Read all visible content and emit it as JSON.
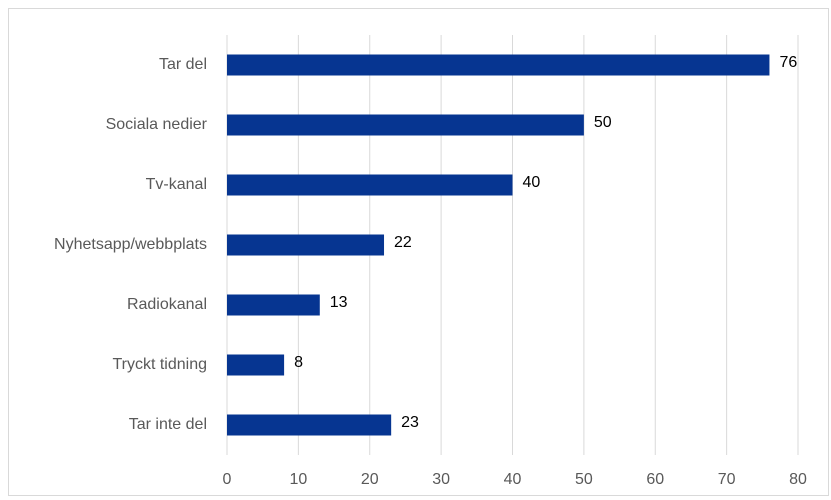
{
  "chart_data": {
    "type": "barh",
    "categories": [
      "Tar del",
      "Sociala nedier",
      "Tv-kanal",
      "Nyhetsapp/webbplats",
      "Radiokanal",
      "Tryckt tidning",
      "Tar inte del"
    ],
    "values": [
      76,
      50,
      40,
      22,
      13,
      8,
      23
    ],
    "color": "#063591",
    "xlim": [
      0,
      80
    ],
    "xticks": [
      0,
      10,
      20,
      30,
      40,
      50,
      60,
      70,
      80
    ],
    "grid": true
  }
}
